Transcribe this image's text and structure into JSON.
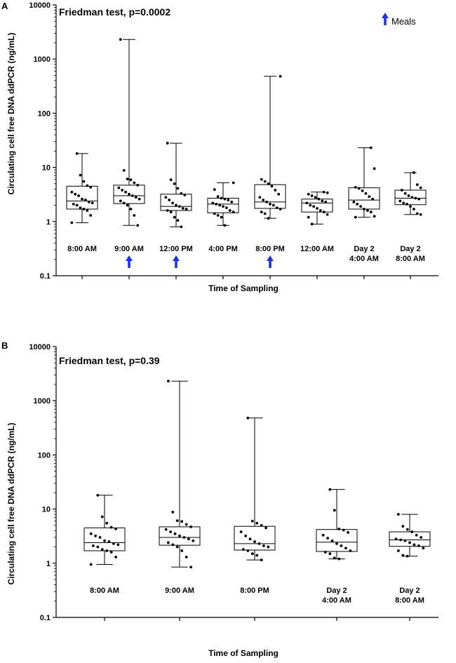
{
  "chart_data": [
    {
      "panel": "A",
      "type": "box",
      "title": "Friedman test, p=0.0002",
      "xlabel": "Time of Sampling",
      "ylabel": "Circulating cell free DNA  ddPCR (ng/mL)",
      "yscale": "log10",
      "ylim": [
        0.1,
        10000
      ],
      "yticks": [
        "0.1",
        "1",
        "10",
        "100",
        "1000",
        "10000"
      ],
      "grid": false,
      "legend": {
        "label": "Meals",
        "position": "top-right"
      },
      "meal_markers": [
        "9:00 AM",
        "12:00 PM",
        "8:00 PM"
      ],
      "categories": [
        {
          "label": [
            "8:00 AM"
          ],
          "min": 0.95,
          "q1": 1.7,
          "median": 2.4,
          "q3": 4.5,
          "max": 18,
          "points": [
            0.95,
            1.3,
            1.6,
            1.7,
            1.8,
            2.0,
            2.1,
            2.2,
            2.3,
            2.5,
            2.6,
            3.0,
            3.2,
            3.5,
            4.3,
            4.6,
            5.5,
            7.2,
            18
          ]
        },
        {
          "label": [
            "9:00 AM"
          ],
          "min": 0.85,
          "q1": 2.15,
          "median": 3.0,
          "q3": 4.7,
          "max": 2300,
          "points": [
            0.85,
            1.3,
            1.7,
            2.0,
            2.2,
            2.4,
            2.6,
            2.8,
            3.0,
            3.2,
            3.5,
            3.8,
            4.2,
            4.7,
            5.2,
            5.9,
            6.1,
            8.8,
            2300
          ]
        },
        {
          "label": [
            "12:00 PM"
          ],
          "min": 0.8,
          "q1": 1.6,
          "median": 1.9,
          "q3": 3.2,
          "max": 28,
          "points": [
            0.8,
            1.05,
            1.2,
            1.5,
            1.6,
            1.7,
            1.75,
            1.9,
            2.0,
            2.2,
            2.5,
            2.8,
            3.1,
            3.3,
            4.1,
            5.0,
            5.9,
            28
          ]
        },
        {
          "label": [
            "4:00 PM"
          ],
          "min": 0.85,
          "q1": 1.45,
          "median": 2.1,
          "q3": 2.7,
          "max": 5.2,
          "points": [
            0.85,
            1.2,
            1.3,
            1.4,
            1.5,
            1.6,
            1.8,
            1.9,
            2.0,
            2.1,
            2.2,
            2.3,
            2.5,
            2.6,
            2.7,
            2.9,
            3.9,
            5.2
          ]
        },
        {
          "label": [
            "8:00 PM"
          ],
          "min": 1.15,
          "q1": 1.75,
          "median": 2.3,
          "q3": 4.8,
          "max": 480,
          "points": [
            1.15,
            1.4,
            1.5,
            1.7,
            1.8,
            2.0,
            2.1,
            2.3,
            2.5,
            2.8,
            3.2,
            3.8,
            4.5,
            5.0,
            5.5,
            6.0,
            480
          ]
        },
        {
          "label": [
            "12:00 AM"
          ],
          "min": 0.9,
          "q1": 1.5,
          "median": 2.2,
          "q3": 2.6,
          "max": 3.5,
          "points": [
            0.9,
            1.2,
            1.35,
            1.5,
            1.6,
            1.75,
            1.9,
            2.0,
            2.2,
            2.3,
            2.4,
            2.6,
            2.8,
            3.0,
            3.2,
            3.4,
            3.5
          ]
        },
        {
          "label": [
            "Day 2",
            "4:00 AM"
          ],
          "min": 1.2,
          "q1": 1.7,
          "median": 2.5,
          "q3": 4.2,
          "max": 23,
          "points": [
            1.2,
            1.25,
            1.5,
            1.6,
            1.7,
            1.9,
            2.1,
            2.3,
            2.6,
            2.9,
            3.3,
            3.7,
            4.1,
            4.3,
            9.5,
            23
          ]
        },
        {
          "label": [
            "Day 2",
            "8:00 AM"
          ],
          "min": 1.35,
          "q1": 2.05,
          "median": 2.7,
          "q3": 3.8,
          "max": 8.0,
          "points": [
            1.35,
            1.4,
            1.7,
            1.9,
            2.1,
            2.2,
            2.4,
            2.6,
            2.7,
            2.8,
            3.0,
            3.3,
            3.8,
            4.2,
            4.8,
            8.0
          ]
        }
      ]
    },
    {
      "panel": "B",
      "type": "box",
      "title": "Friedman test, p=0.39",
      "xlabel": "Time of Sampling",
      "ylabel": "Circulating cell free DNA  ddPCR (ng/mL)",
      "yscale": "log10",
      "ylim": [
        0.1,
        10000
      ],
      "yticks": [
        "0.1",
        "1",
        "10",
        "100",
        "1000",
        "10000"
      ],
      "grid": false,
      "categories": [
        {
          "label": [
            "8:00 AM"
          ],
          "min": 0.95,
          "q1": 1.7,
          "median": 2.4,
          "q3": 4.5,
          "max": 18,
          "points": [
            0.95,
            1.3,
            1.6,
            1.7,
            1.8,
            2.0,
            2.1,
            2.2,
            2.3,
            2.5,
            2.6,
            3.0,
            3.2,
            3.5,
            4.3,
            4.6,
            5.5,
            7.2,
            18
          ]
        },
        {
          "label": [
            "9:00 AM"
          ],
          "min": 0.85,
          "q1": 2.15,
          "median": 3.0,
          "q3": 4.7,
          "max": 2300,
          "points": [
            0.85,
            1.3,
            1.7,
            2.0,
            2.2,
            2.4,
            2.6,
            2.8,
            3.0,
            3.2,
            3.5,
            3.8,
            4.2,
            4.7,
            5.2,
            5.9,
            6.1,
            8.8,
            2300
          ]
        },
        {
          "label": [
            "8:00 PM"
          ],
          "min": 1.15,
          "q1": 1.75,
          "median": 2.3,
          "q3": 4.8,
          "max": 480,
          "points": [
            1.15,
            1.4,
            1.5,
            1.7,
            1.8,
            2.0,
            2.1,
            2.3,
            2.5,
            2.8,
            3.2,
            3.8,
            4.5,
            5.0,
            5.5,
            6.0,
            480
          ]
        },
        {
          "label": [
            "Day 2",
            "4:00 AM"
          ],
          "min": 1.2,
          "q1": 1.65,
          "median": 2.45,
          "q3": 4.2,
          "max": 23,
          "points": [
            1.2,
            1.25,
            1.5,
            1.6,
            1.7,
            1.9,
            2.1,
            2.3,
            2.6,
            2.9,
            3.3,
            3.7,
            4.1,
            4.3,
            9.5,
            23
          ]
        },
        {
          "label": [
            "Day 2",
            "8:00 AM"
          ],
          "min": 1.35,
          "q1": 2.05,
          "median": 2.7,
          "q3": 3.8,
          "max": 8.0,
          "points": [
            1.35,
            1.4,
            1.7,
            1.9,
            2.1,
            2.2,
            2.4,
            2.6,
            2.7,
            2.8,
            3.0,
            3.3,
            3.8,
            4.2,
            4.8,
            8.0
          ]
        }
      ]
    }
  ],
  "colors": {
    "meal_arrow": "#1a33e6",
    "ink": "#000000"
  }
}
